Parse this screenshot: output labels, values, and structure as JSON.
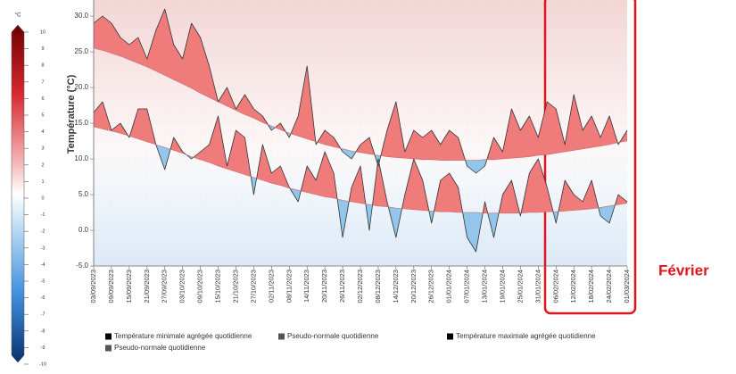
{
  "chart_data": {
    "type": "line",
    "y_label": "Température (°C)",
    "categories": [
      "03/09/2023",
      null,
      "09/09/2023",
      null,
      "15/09/2023",
      null,
      "21/09/2023",
      null,
      "27/09/2023",
      null,
      "03/10/2023",
      null,
      "09/10/2023",
      null,
      "15/10/2023",
      null,
      "21/10/2023",
      null,
      "27/10/2023",
      null,
      "02/11/2023",
      null,
      "08/11/2023",
      null,
      "14/11/2023",
      null,
      "20/11/2023",
      null,
      "26/11/2023",
      null,
      "02/12/2023",
      null,
      "08/12/2023",
      null,
      "14/12/2023",
      null,
      "20/12/2023",
      null,
      "26/12/2023",
      null,
      "01/01/2024",
      null,
      "07/01/2024",
      null,
      "13/01/2024",
      null,
      "19/01/2024",
      null,
      "25/01/2024",
      null,
      "31/01/2024",
      null,
      "06/02/2024",
      null,
      "12/02/2024",
      null,
      "18/02/2024",
      null,
      "24/02/2024",
      null,
      "01/03/2024"
    ],
    "series": [
      {
        "name": "Température minimale agrégée quotidienne",
        "color": "#000000",
        "values": [
          16.5,
          18,
          14,
          15,
          13,
          17,
          17,
          12,
          8.5,
          13,
          11,
          10,
          11,
          12,
          16,
          9,
          14,
          13,
          5,
          12,
          8,
          9,
          6,
          4,
          9,
          7,
          11,
          8,
          -1,
          6,
          9,
          0,
          10,
          4,
          -1,
          5,
          10,
          7,
          1,
          7,
          8,
          6,
          -1,
          -3,
          4,
          -1,
          5,
          7,
          2,
          8,
          10,
          6,
          1,
          7,
          5,
          4,
          7,
          2,
          1,
          5,
          4
        ]
      },
      {
        "name": "Pseudo-normale quotidienne",
        "color": "#555555",
        "values": [
          14.5,
          14.2,
          13.9,
          13.6,
          13.2,
          12.8,
          12.4,
          12.0,
          11.6,
          11.2,
          10.8,
          10.3,
          9.9,
          9.5,
          9.0,
          8.6,
          8.2,
          7.8,
          7.4,
          7.0,
          6.6,
          6.3,
          5.9,
          5.6,
          5.3,
          5.0,
          4.7,
          4.5,
          4.2,
          4.0,
          3.8,
          3.6,
          3.4,
          3.3,
          3.1,
          3.0,
          2.9,
          2.8,
          2.7,
          2.6,
          2.6,
          2.5,
          2.5,
          2.5,
          2.4,
          2.4,
          2.4,
          2.4,
          2.4,
          2.5,
          2.5,
          2.6,
          2.6,
          2.7,
          2.8,
          2.9,
          3.0,
          3.2,
          3.4,
          3.6,
          3.8
        ]
      },
      {
        "name": "Température maximale agrégée quotidienne",
        "color": "#000000",
        "values": [
          29,
          30,
          29,
          27,
          26,
          27,
          24,
          28,
          31,
          26,
          24,
          29,
          27,
          23,
          18,
          20,
          17,
          19,
          17,
          16,
          14,
          15,
          13,
          16,
          23,
          12,
          14,
          13,
          11,
          10,
          12,
          13,
          9,
          14,
          18,
          11,
          14,
          13,
          14,
          12,
          14,
          13,
          9,
          8,
          9,
          13,
          11,
          17,
          14,
          16,
          13,
          18,
          17,
          12,
          19,
          14,
          16,
          13,
          16,
          12,
          14
        ]
      },
      {
        "name": "Pseudo-normale quotidienne",
        "color": "#555555",
        "values": [
          25.5,
          25.2,
          24.8,
          24.4,
          23.9,
          23.4,
          22.9,
          22.3,
          21.7,
          21.1,
          20.5,
          19.9,
          19.2,
          18.6,
          18.0,
          17.4,
          16.8,
          16.2,
          15.7,
          15.1,
          14.6,
          14.1,
          13.6,
          13.2,
          12.8,
          12.4,
          12.0,
          11.7,
          11.4,
          11.1,
          10.9,
          10.7,
          10.5,
          10.3,
          10.2,
          10.1,
          10.0,
          9.9,
          9.9,
          9.8,
          9.8,
          9.8,
          9.8,
          9.8,
          9.9,
          9.9,
          10.0,
          10.1,
          10.2,
          10.3,
          10.5,
          10.6,
          10.8,
          11.0,
          11.2,
          11.4,
          11.6,
          11.8,
          12.0,
          12.3,
          12.5
        ]
      }
    ],
    "above_color": "#f07b7b",
    "below_color": "#92c6ea",
    "ylim": [
      -5,
      32.25
    ],
    "yticks": [
      {
        "value": -5,
        "label": "-5.0"
      },
      {
        "value": 0,
        "label": "0.0"
      },
      {
        "value": 5,
        "label": "5.0"
      },
      {
        "value": 10,
        "label": "10.0"
      },
      {
        "value": 15,
        "label": "15.0"
      },
      {
        "value": 20,
        "label": "20.0"
      },
      {
        "value": 25,
        "label": "25.0"
      },
      {
        "value": 30,
        "label": "30.0"
      }
    ],
    "annotation": "Février",
    "color_scale": {
      "unit": "°C",
      "ticks": [
        10,
        9,
        8,
        7,
        6,
        5,
        4,
        3,
        2,
        1,
        0,
        -1,
        -2,
        -3,
        -4,
        -5,
        -6,
        -7,
        -8,
        -9,
        -10
      ]
    }
  }
}
